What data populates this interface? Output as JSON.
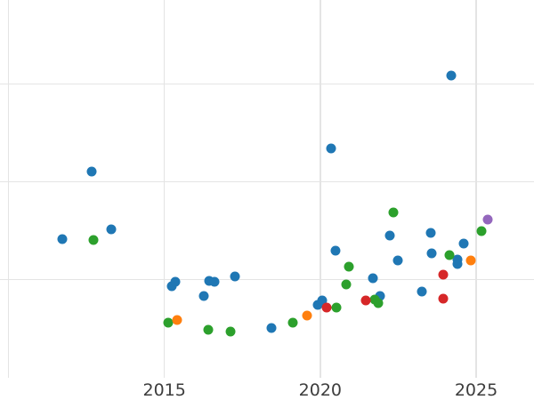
{
  "chart_data": {
    "type": "scatter",
    "title": "",
    "xlabel": "",
    "ylabel": "",
    "grid": true,
    "legend": "none",
    "background_color": "#ffffff",
    "grid_color": "#e4e4e4",
    "tick_label_color": "#3d3d3d",
    "x_axis": {
      "tick_labels": [
        "2015",
        "2020",
        "2025"
      ],
      "tick_years": [
        2015,
        2020,
        2025
      ],
      "gridline_years": [
        2010,
        2015,
        2020,
        2025
      ],
      "visible_range": [
        2009.7,
        2026.9
      ]
    },
    "y_axis": {
      "tick_labels": [],
      "note": "y-axis labels not visible in view; values given in gridline units above bottom grid level",
      "gridline_values": [
        1,
        2,
        3
      ],
      "visible_range": [
        -0.23,
        3.86
      ]
    },
    "series": [
      {
        "name": "blue",
        "color": "#1f77b4",
        "points": [
          [
            2011.73,
            1.42
          ],
          [
            2012.68,
            2.11
          ],
          [
            2013.3,
            1.52
          ],
          [
            2015.23,
            0.93
          ],
          [
            2015.36,
            0.98
          ],
          [
            2016.27,
            0.83
          ],
          [
            2016.44,
            0.99
          ],
          [
            2016.61,
            0.98
          ],
          [
            2017.26,
            1.03
          ],
          [
            2018.43,
            0.51
          ],
          [
            2019.93,
            0.74
          ],
          [
            2020.06,
            0.79
          ],
          [
            2020.35,
            2.34
          ],
          [
            2020.5,
            1.3
          ],
          [
            2021.7,
            1.02
          ],
          [
            2021.93,
            0.83
          ],
          [
            2022.24,
            1.45
          ],
          [
            2022.48,
            1.2
          ],
          [
            2023.26,
            0.88
          ],
          [
            2023.54,
            1.48
          ],
          [
            2023.58,
            1.27
          ],
          [
            2024.19,
            3.09
          ],
          [
            2024.4,
            1.21
          ],
          [
            2024.4,
            1.16
          ],
          [
            2024.6,
            1.37
          ]
        ]
      },
      {
        "name": "green",
        "color": "#2ca02c",
        "points": [
          [
            2012.72,
            1.41
          ],
          [
            2015.13,
            0.56
          ],
          [
            2016.41,
            0.49
          ],
          [
            2017.12,
            0.47
          ],
          [
            2019.12,
            0.56
          ],
          [
            2020.52,
            0.72
          ],
          [
            2020.84,
            0.95
          ],
          [
            2020.92,
            1.13
          ],
          [
            2021.75,
            0.8
          ],
          [
            2021.86,
            0.76
          ],
          [
            2022.34,
            1.69
          ],
          [
            2024.15,
            1.25
          ],
          [
            2025.17,
            1.5
          ]
        ]
      },
      {
        "name": "orange",
        "color": "#ff7f0e",
        "points": [
          [
            2015.42,
            0.59
          ],
          [
            2019.58,
            0.63
          ],
          [
            2024.84,
            1.2
          ]
        ]
      },
      {
        "name": "red",
        "color": "#d62728",
        "points": [
          [
            2020.2,
            0.72
          ],
          [
            2021.45,
            0.79
          ],
          [
            2023.93,
            0.81
          ],
          [
            2023.94,
            1.05
          ]
        ]
      },
      {
        "name": "purple",
        "color": "#9467bd",
        "points": [
          [
            2025.36,
            1.62
          ]
        ]
      }
    ]
  }
}
